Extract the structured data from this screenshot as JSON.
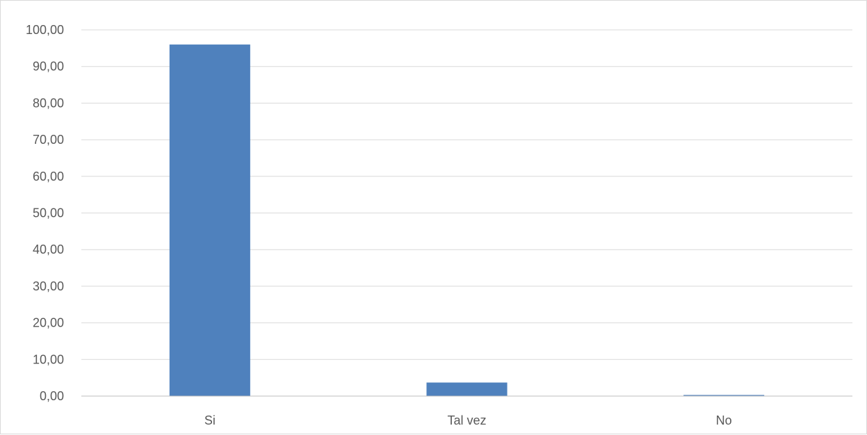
{
  "chart_data": {
    "type": "bar",
    "categories": [
      "Si",
      "Tal vez",
      "No"
    ],
    "values": [
      96.0,
      3.7,
      0.3
    ],
    "ylim": [
      0,
      100
    ],
    "yticks": [
      "0,00",
      "10,00",
      "20,00",
      "30,00",
      "40,00",
      "50,00",
      "60,00",
      "70,00",
      "80,00",
      "90,00",
      "100,00"
    ],
    "grid": true,
    "legend": "none",
    "colors": {
      "bar": "#4F81BD",
      "grid": "#d9d9d9",
      "axis": "#bfbfbf",
      "text": "#595959"
    }
  }
}
